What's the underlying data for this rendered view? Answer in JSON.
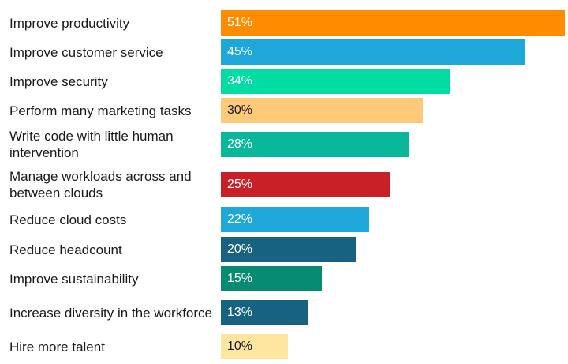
{
  "chart_data": {
    "type": "bar",
    "orientation": "horizontal",
    "categories": [
      "Improve productivity",
      "Improve customer service",
      "Improve security",
      "Perform many marketing tasks",
      "Write code with little human intervention",
      "Manage workloads across and between clouds",
      "Reduce cloud costs",
      "Reduce headcount",
      "Improve sustainability",
      "Increase diversity in the workforce",
      "Hire more talent"
    ],
    "values": [
      51,
      45,
      34,
      30,
      28,
      25,
      22,
      20,
      15,
      13,
      10
    ],
    "value_labels": [
      "51%",
      "45%",
      "34%",
      "30%",
      "28%",
      "25%",
      "22%",
      "20%",
      "15%",
      "13%",
      "10%"
    ],
    "colors": [
      "#FF8C00",
      "#1EA7D9",
      "#00DCA4",
      "#FFC97A",
      "#09B79B",
      "#C91F26",
      "#1EA7D9",
      "#176281",
      "#068A72",
      "#176281",
      "#FFE6A0"
    ],
    "label_colors": [
      "#ffffff",
      "#ffffff",
      "#ffffff",
      "#1a1a1a",
      "#ffffff",
      "#ffffff",
      "#ffffff",
      "#ffffff",
      "#ffffff",
      "#ffffff",
      "#1a1a1a"
    ],
    "xlim": [
      0,
      51
    ],
    "grid": false,
    "legend": "none"
  }
}
